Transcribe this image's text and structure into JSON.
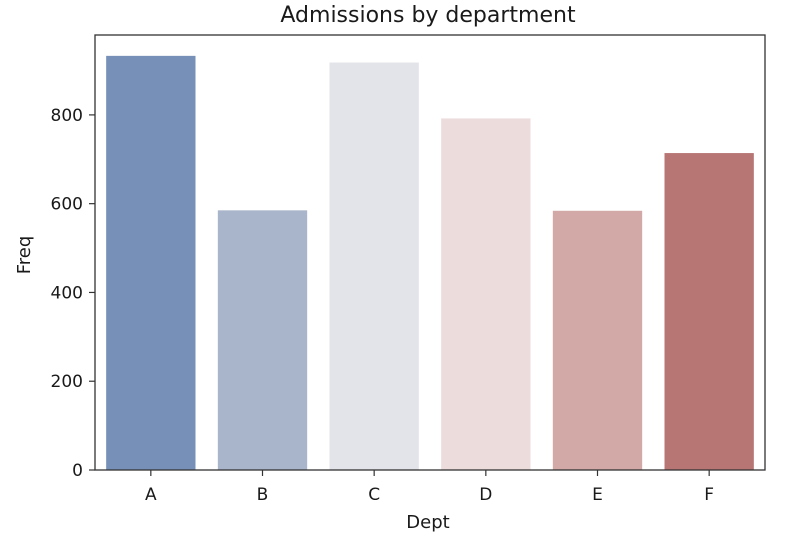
{
  "chart_data": {
    "type": "bar",
    "title": "Admissions by department",
    "xlabel": "Dept",
    "ylabel": "Freq",
    "categories": [
      "A",
      "B",
      "C",
      "D",
      "E",
      "F"
    ],
    "values": [
      933,
      585,
      918,
      792,
      584,
      714
    ],
    "colors": [
      "#7690b8",
      "#a9b5ca",
      "#e3e3ea",
      "#ecdcdc",
      "#d3a9a8",
      "#b77573"
    ],
    "ylim": [
      0,
      980
    ],
    "yticks": [
      0,
      200,
      400,
      600,
      800
    ],
    "grid": false,
    "legend": "none"
  }
}
